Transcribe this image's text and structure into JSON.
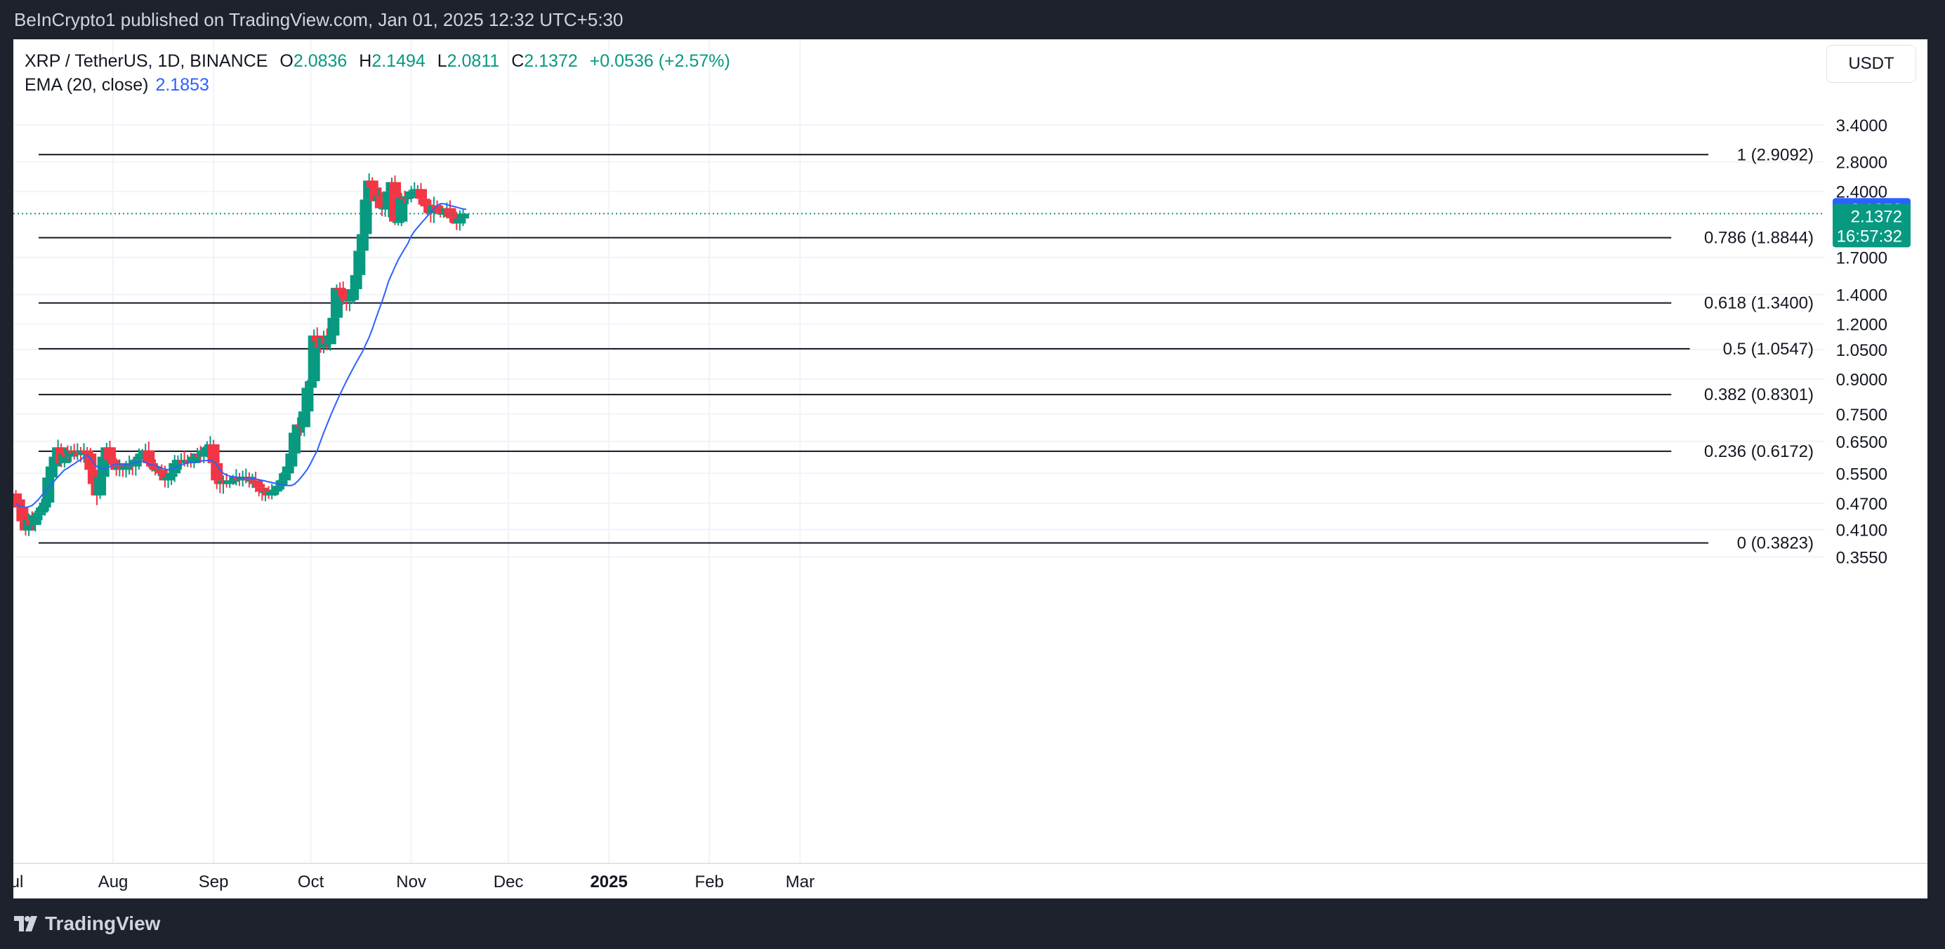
{
  "header": {
    "published": "BeInCrypto1 published on TradingView.com, Jan 01, 2025 12:32 UTC+5:30"
  },
  "footer": {
    "brand": "TradingView"
  },
  "legend": {
    "symbol": "XRP / TetherUS, 1D, BINANCE",
    "o_label": "O",
    "o": "2.0836",
    "h_label": "H",
    "h": "2.1494",
    "l_label": "L",
    "l": "2.0811",
    "c_label": "C",
    "c": "2.1372",
    "change": "+0.0536 (+2.57%)",
    "ema_label": "EMA (20, close)",
    "ema_value": "2.1853"
  },
  "currency_button": "USDT",
  "colors": {
    "up": "#089981",
    "down": "#f23645",
    "ema": "#2962ff",
    "fib": "#131722"
  },
  "chart_data": {
    "type": "candlestick",
    "scale": "log",
    "y_ticks": [
      "3.4000",
      "2.8000",
      "2.4000",
      "1.7000",
      "1.4000",
      "1.2000",
      "1.0500",
      "0.9000",
      "0.7500",
      "0.6500",
      "0.5500",
      "0.4700",
      "0.4100",
      "0.3550"
    ],
    "x_ticks": [
      {
        "date": "2024-07-01",
        "label": "Jul"
      },
      {
        "date": "2024-08-01",
        "label": "Aug"
      },
      {
        "date": "2024-09-01",
        "label": "Sep"
      },
      {
        "date": "2024-10-01",
        "label": "Oct"
      },
      {
        "date": "2024-11-01",
        "label": "Nov"
      },
      {
        "date": "2024-12-01",
        "label": "Dec"
      },
      {
        "date": "2025-01-01",
        "label": "2025"
      },
      {
        "date": "2025-02-01",
        "label": "Feb"
      },
      {
        "date": "2025-03-01",
        "label": "Mar"
      }
    ],
    "fib_levels": [
      {
        "level": "1",
        "price": 2.9092,
        "label": "1 (2.9092)"
      },
      {
        "level": "0.786",
        "price": 1.8844,
        "label": "0.786 (1.8844)"
      },
      {
        "level": "0.618",
        "price": 1.34,
        "label": "0.618 (1.3400)"
      },
      {
        "level": "0.5",
        "price": 1.0547,
        "label": "0.5 (1.0547)"
      },
      {
        "level": "0.382",
        "price": 0.8301,
        "label": "0.382 (0.8301)"
      },
      {
        "level": "0.236",
        "price": 0.6172,
        "label": "0.236 (0.6172)"
      },
      {
        "level": "0",
        "price": 0.3823,
        "label": "0 (0.3823)"
      }
    ],
    "ema_price_label": "2.1853",
    "last_price_label": "2.1372",
    "countdown": "16:57:32",
    "ema_close": [
      0.47,
      0.464,
      0.462,
      0.46,
      0.462,
      0.465,
      0.472,
      0.48,
      0.49,
      0.5,
      0.51,
      0.52,
      0.53,
      0.54,
      0.55,
      0.56,
      0.565,
      0.572,
      0.578,
      0.585,
      0.59,
      0.6,
      0.605,
      0.595,
      0.58,
      0.57,
      0.565,
      0.562,
      0.565,
      0.57,
      0.575,
      0.577,
      0.578,
      0.576,
      0.574,
      0.576,
      0.58,
      0.582,
      0.585,
      0.586,
      0.582,
      0.578,
      0.575,
      0.573,
      0.57,
      0.565,
      0.562,
      0.56,
      0.562,
      0.565,
      0.57,
      0.575,
      0.578,
      0.58,
      0.582,
      0.583,
      0.585,
      0.586,
      0.588,
      0.588,
      0.59,
      0.585,
      0.575,
      0.56,
      0.55,
      0.545,
      0.542,
      0.54,
      0.539,
      0.538,
      0.537,
      0.537,
      0.536,
      0.535,
      0.534,
      0.532,
      0.53,
      0.528,
      0.526,
      0.524,
      0.522,
      0.52,
      0.518,
      0.517,
      0.516,
      0.516,
      0.52,
      0.528,
      0.538,
      0.55,
      0.563,
      0.58,
      0.6,
      0.62,
      0.65,
      0.68,
      0.71,
      0.74,
      0.77,
      0.8,
      0.83,
      0.86,
      0.89,
      0.92,
      0.95,
      0.98,
      1.01,
      1.04,
      1.08,
      1.12,
      1.17,
      1.23,
      1.29,
      1.35,
      1.42,
      1.5,
      1.56,
      1.62,
      1.68,
      1.73,
      1.78,
      1.83,
      1.9,
      1.95,
      1.99,
      2.03,
      2.07,
      2.11,
      2.15,
      2.19,
      2.23,
      2.25,
      2.25,
      2.24,
      2.23,
      2.22,
      2.21,
      2.2,
      2.19,
      2.1853
    ]
  }
}
